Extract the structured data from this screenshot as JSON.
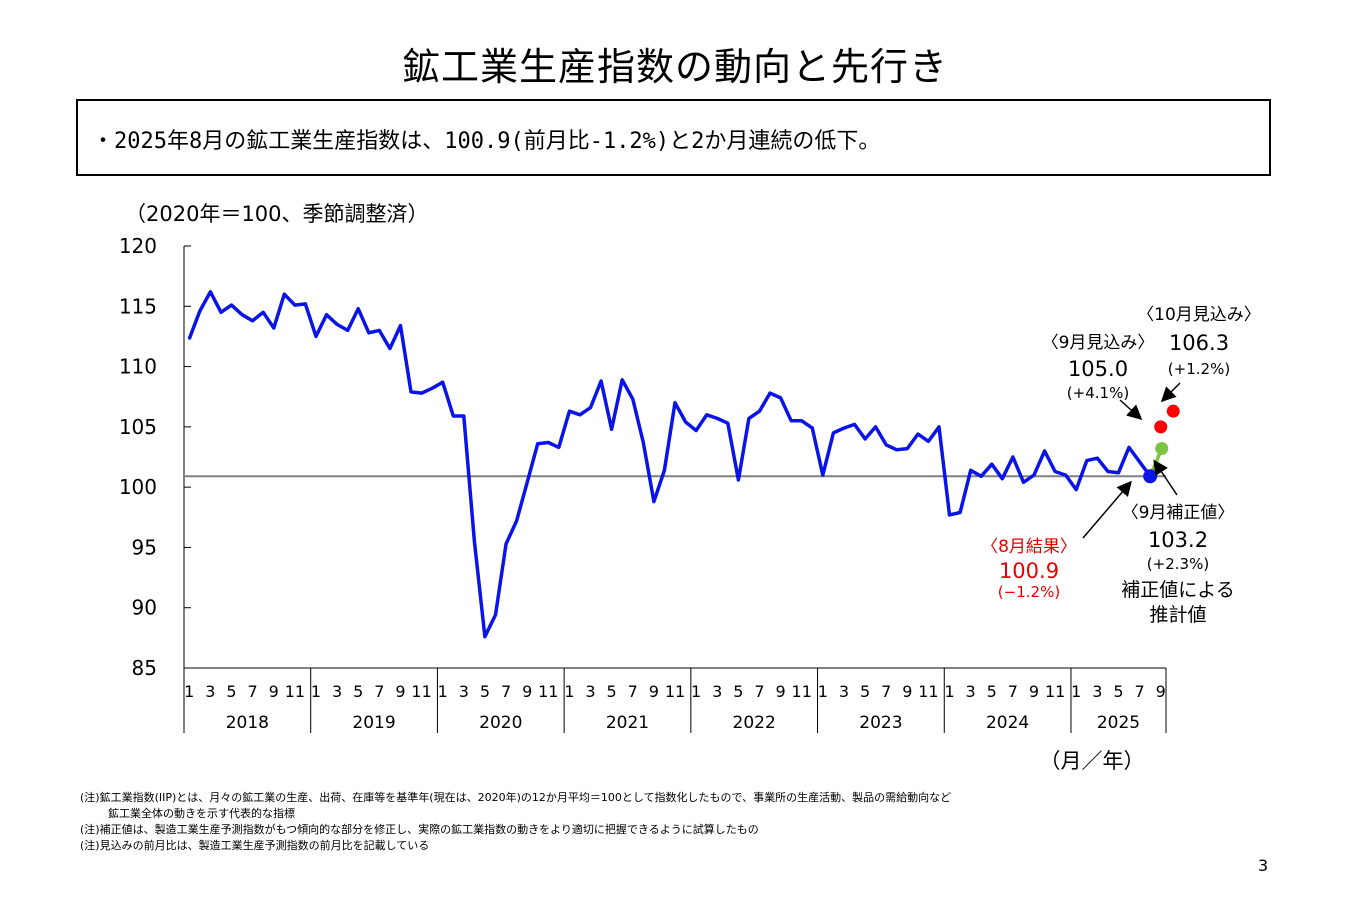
{
  "title": "鉱工業生産指数の動向と先行き",
  "summary": "・2025年8月の鉱工業生産指数は、100.9(前月比-1.2%)と2か月連続の低下。",
  "unit_label": "（2020年＝100、季節調整済）",
  "notes": [
    "(注)鉱工業指数(IIP)とは、月々の鉱工業の生産、出荷、在庫等を基準年(現在は、2020年)の12か月平均＝100として指数化したもので、事業所の生産活動、製品の需給動向など",
    "鉱工業全体の動きを示す代表的な指標",
    "(注)補正値は、製造工業生産予測指数がもつ傾向的な部分を修正し、実際の鉱工業指数の動きをより適切に把握できるように試算したもの",
    "(注)見込みの前月比は、製造工業生産予測指数の前月比を記載している"
  ],
  "page_number": "3",
  "colors": {
    "series": "#0a14e8",
    "forecast": "#ff0000",
    "corrected": "#7cc444",
    "result_text": "#e60000",
    "refline": "#808080"
  },
  "chart_data": {
    "type": "line",
    "title": "鉱工業生産指数の動向と先行き",
    "ylabel": "（2020年＝100、季節調整済）",
    "xlabel": "（月／年）",
    "ylim": [
      85,
      120
    ],
    "yticks": [
      "85",
      "90",
      "95",
      "100",
      "105",
      "110",
      "115",
      "120"
    ],
    "month_labels": [
      "1",
      "3",
      "5",
      "7",
      "9",
      "11"
    ],
    "month_labels_last_year": [
      "1",
      "3",
      "5",
      "7",
      "9"
    ],
    "years": [
      "2018",
      "2019",
      "2020",
      "2021",
      "2022",
      "2023",
      "2024",
      "2025"
    ],
    "reference_value": 100.9,
    "series": [
      {
        "name": "鉱工業生産指数",
        "start": "2018-01",
        "values": [
          112.3,
          114.6,
          116.2,
          114.5,
          115.1,
          114.3,
          113.8,
          114.5,
          113.2,
          116.0,
          115.1,
          115.2,
          112.5,
          114.3,
          113.5,
          113.0,
          114.8,
          112.8,
          113.0,
          111.5,
          113.4,
          107.9,
          107.8,
          108.2,
          108.7,
          105.9,
          105.9,
          95.5,
          87.6,
          89.4,
          95.3,
          97.2,
          100.4,
          103.6,
          103.7,
          103.3,
          106.3,
          106.0,
          106.6,
          108.8,
          104.8,
          108.9,
          107.3,
          103.7,
          98.8,
          101.4,
          107.0,
          105.4,
          104.7,
          106.0,
          105.7,
          105.3,
          100.6,
          105.7,
          106.3,
          107.8,
          107.4,
          105.5,
          105.5,
          104.9,
          101.0,
          104.5,
          104.9,
          105.2,
          104.0,
          105.0,
          103.5,
          103.1,
          103.2,
          104.4,
          103.8,
          105.0,
          97.7,
          97.9,
          101.4,
          100.9,
          101.9,
          100.7,
          102.5,
          100.4,
          101.0,
          103.0,
          101.3,
          101.0,
          99.8,
          102.2,
          102.4,
          101.3,
          101.2,
          103.3,
          102.1,
          100.9
        ]
      }
    ],
    "corrected_estimate": {
      "month": "2025-09",
      "value": 103.2
    },
    "forecasts": [
      {
        "month": "2025-09",
        "value": 105.0
      },
      {
        "month": "2025-10",
        "value": 106.3
      }
    ],
    "annotations": {
      "forecast_sep": {
        "label": "〈9月見込み〉",
        "value": "105.0",
        "change": "(+4.1%)"
      },
      "forecast_oct": {
        "label": "〈10月見込み〉",
        "value": "106.3",
        "change": "(+1.2%)"
      },
      "result_aug": {
        "label": "〈8月結果〉",
        "value": "100.9",
        "change": "(−1.2%)"
      },
      "corrected_sep": {
        "label": "〈9月補正値〉",
        "value": "103.2",
        "change": "(+2.3%)",
        "note1": "補正値による",
        "note2": "推計値"
      }
    },
    "x_unit_label": "（月／年）"
  }
}
